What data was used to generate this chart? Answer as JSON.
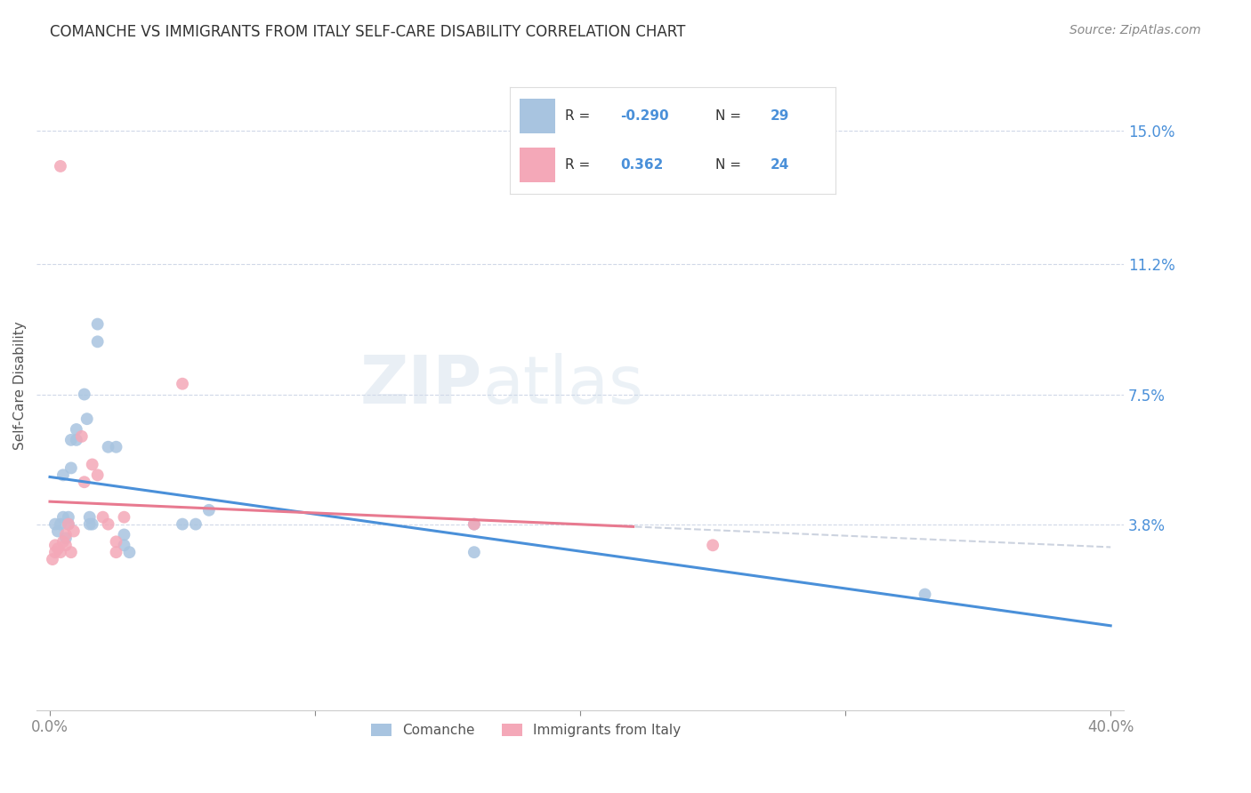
{
  "title": "COMANCHE VS IMMIGRANTS FROM ITALY SELF-CARE DISABILITY CORRELATION CHART",
  "source": "Source: ZipAtlas.com",
  "ylabel": "Self-Care Disability",
  "xlim": [
    -0.005,
    0.405
  ],
  "ylim": [
    -0.015,
    0.17
  ],
  "yticks": [
    0.038,
    0.075,
    0.112,
    0.15
  ],
  "ytick_labels": [
    "3.8%",
    "7.5%",
    "11.2%",
    "15.0%"
  ],
  "xticks": [
    0.0,
    0.1,
    0.2,
    0.3,
    0.4
  ],
  "xtick_labels": [
    "0.0%",
    "",
    "",
    "",
    "40.0%"
  ],
  "legend_label1": "Comanche",
  "legend_label2": "Immigrants from Italy",
  "color_blue": "#a8c4e0",
  "color_pink": "#f4a8b8",
  "line_blue": "#4a90d9",
  "line_pink": "#e87a90",
  "line_dashed": "#c0c8d8",
  "comanche_x": [
    0.002,
    0.003,
    0.004,
    0.005,
    0.005,
    0.006,
    0.007,
    0.007,
    0.008,
    0.008,
    0.01,
    0.01,
    0.013,
    0.014,
    0.015,
    0.015,
    0.016,
    0.018,
    0.018,
    0.022,
    0.025,
    0.028,
    0.028,
    0.03,
    0.05,
    0.055,
    0.06,
    0.16,
    0.16,
    0.33
  ],
  "comanche_y": [
    0.038,
    0.036,
    0.038,
    0.04,
    0.052,
    0.034,
    0.038,
    0.04,
    0.054,
    0.062,
    0.065,
    0.062,
    0.075,
    0.068,
    0.038,
    0.04,
    0.038,
    0.095,
    0.09,
    0.06,
    0.06,
    0.035,
    0.032,
    0.03,
    0.038,
    0.038,
    0.042,
    0.038,
    0.03,
    0.018
  ],
  "italy_x": [
    0.001,
    0.002,
    0.002,
    0.003,
    0.004,
    0.005,
    0.006,
    0.006,
    0.007,
    0.008,
    0.009,
    0.012,
    0.013,
    0.016,
    0.018,
    0.02,
    0.022,
    0.025,
    0.025,
    0.028,
    0.05,
    0.16,
    0.25,
    0.004
  ],
  "italy_y": [
    0.028,
    0.03,
    0.032,
    0.031,
    0.03,
    0.033,
    0.035,
    0.032,
    0.038,
    0.03,
    0.036,
    0.063,
    0.05,
    0.055,
    0.052,
    0.04,
    0.038,
    0.033,
    0.03,
    0.04,
    0.078,
    0.038,
    0.032,
    0.14
  ]
}
